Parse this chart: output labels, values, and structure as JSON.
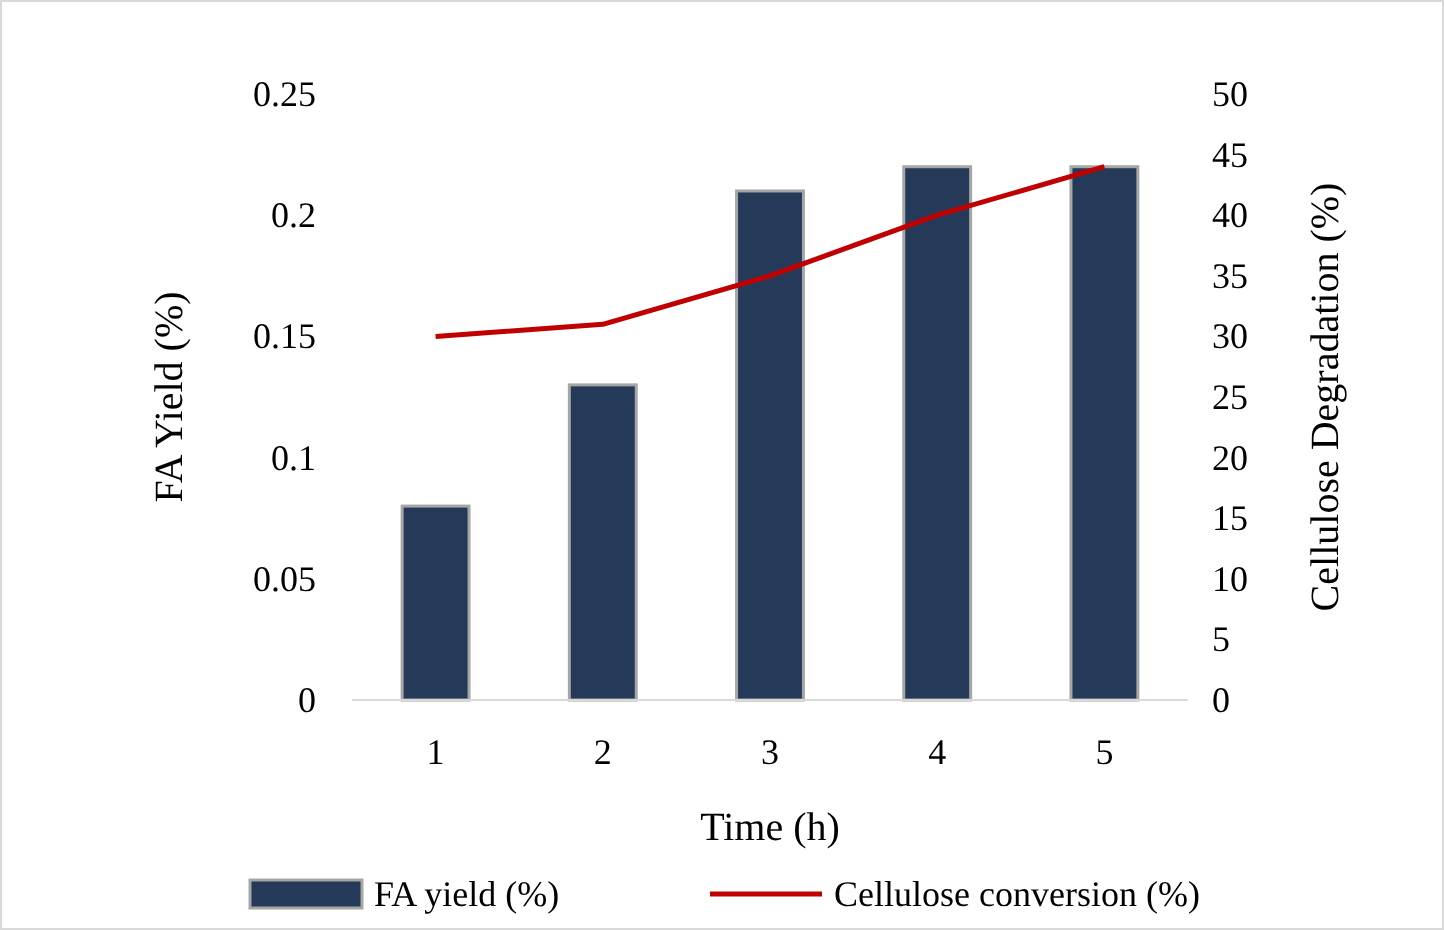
{
  "chart_data": {
    "type": "bar",
    "xlabel": "Time (h)",
    "ylabel": "FA Yield (%)",
    "y2label": "Cellulose Degradation (%)",
    "categories": [
      "1",
      "2",
      "3",
      "4",
      "5"
    ],
    "series": [
      {
        "name": "FA yield (%)",
        "color": "#243a58",
        "values": [
          0.08,
          0.13,
          0.21,
          0.22,
          0.22
        ]
      },
      {
        "name": "Cellulose conversion (%)",
        "type": "line",
        "axis": "y2",
        "color": "#c00000",
        "values": [
          30,
          31,
          35,
          40,
          44
        ]
      }
    ],
    "ylim": [
      0,
      0.25
    ],
    "yticks": [
      0,
      0.05,
      0.1,
      0.15,
      0.2,
      0.25
    ],
    "y2lim": [
      0,
      50
    ],
    "y2ticks": [
      0,
      5,
      10,
      15,
      20,
      25,
      30,
      35,
      40,
      45,
      50
    ],
    "legend": "bottom",
    "grid": false,
    "marker": "none",
    "line_style": "solid"
  }
}
